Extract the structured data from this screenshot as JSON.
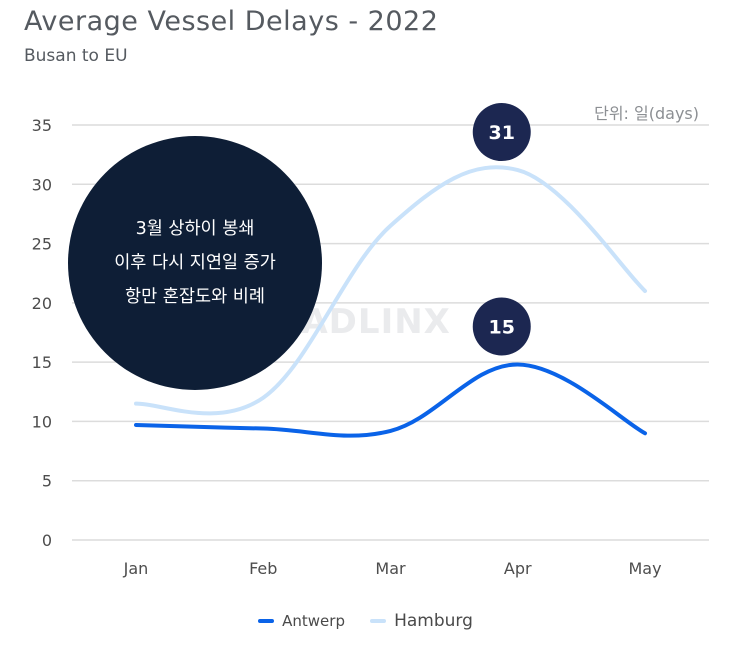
{
  "title": "Average Vessel Delays - 2022",
  "subtitle": "Busan to EU",
  "unit_label": "단위: 일(days)",
  "watermark": "TRADLINX",
  "callout": {
    "lines": [
      "3월 상하이 봉쇄",
      "이후 다시 지연일 증가",
      "항만 혼잡도와 비례"
    ]
  },
  "colors": {
    "antwerp": "#0a63e8",
    "hamburg": "#c9e2fa",
    "badge": "#1c2751",
    "grid": "#dcdcdc"
  },
  "chart_data": {
    "type": "line",
    "title": "Average Vessel Delays - 2022",
    "subtitle": "Busan to EU",
    "categories": [
      "Jan",
      "Feb",
      "Mar",
      "Apr",
      "May"
    ],
    "ylim": [
      0,
      35
    ],
    "yticks": [
      0,
      5,
      10,
      15,
      20,
      25,
      30,
      35
    ],
    "grid": true,
    "legend_position": "bottom",
    "series": [
      {
        "name": "Antwerp",
        "values": [
          9.7,
          9.4,
          9.2,
          14.8,
          9.0
        ]
      },
      {
        "name": "Hamburg",
        "values": [
          11.5,
          12.0,
          26.5,
          31.2,
          21.0
        ]
      }
    ],
    "annotations": [
      {
        "series": "Hamburg",
        "category": "Apr",
        "label": "31"
      },
      {
        "series": "Antwerp",
        "category": "Apr",
        "label": "15"
      }
    ]
  }
}
